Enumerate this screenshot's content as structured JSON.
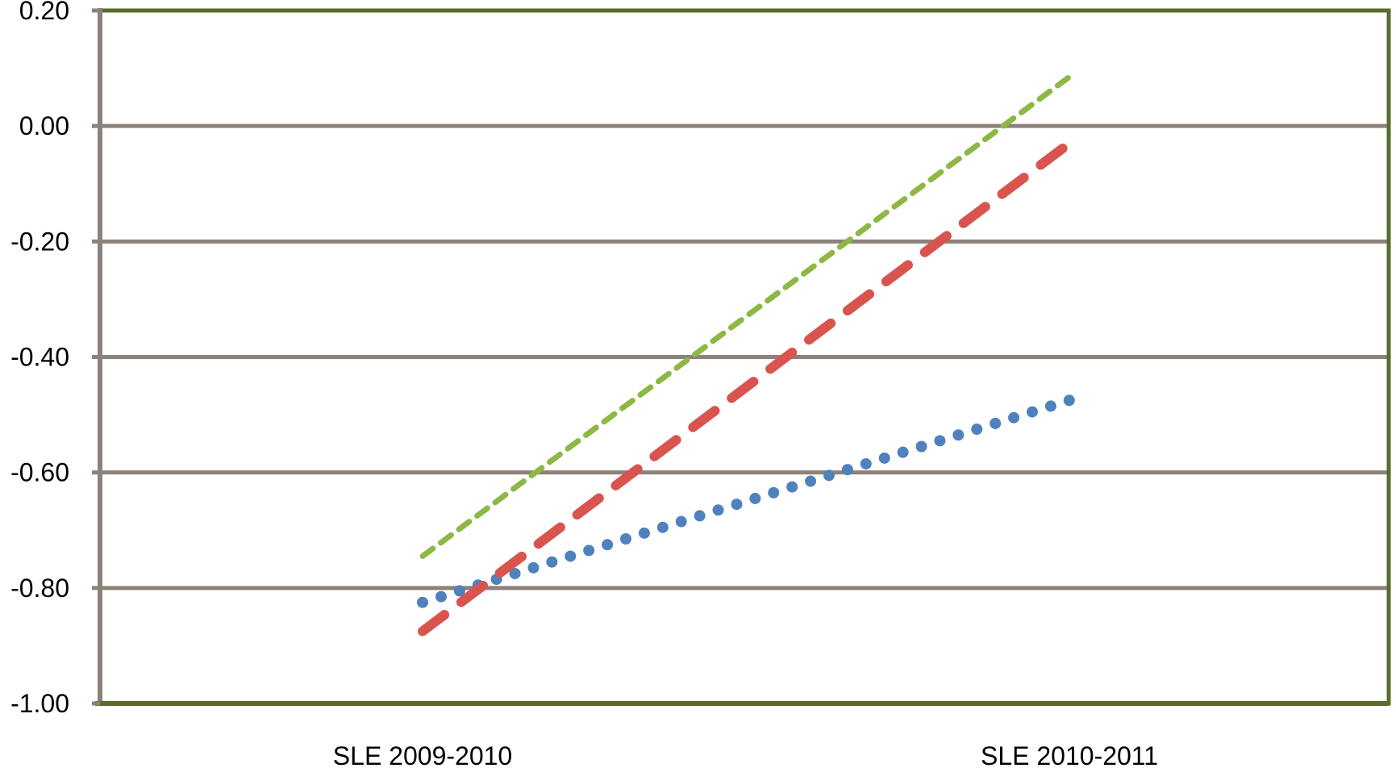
{
  "chart_data": {
    "type": "line",
    "title": "",
    "xlabel": "",
    "ylabel": "",
    "categories": [
      "SLE 2009-2010",
      "SLE 2010-2011"
    ],
    "ylim": [
      -1.0,
      0.2
    ],
    "yticks": [
      "0.20",
      "0.00",
      "-0.20",
      "-0.40",
      "-0.60",
      "-0.80",
      "-1.00"
    ],
    "ytick_values": [
      0.2,
      0.0,
      -0.2,
      -0.4,
      -0.6,
      -0.8,
      -1.0
    ],
    "grid": true,
    "legend": "none",
    "series": [
      {
        "values": [
          -0.825,
          -0.475
        ],
        "color": "#4F81BD",
        "style": "dotted"
      },
      {
        "values": [
          -0.875,
          -0.03
        ],
        "color": "#D9534F",
        "style": "dashed"
      },
      {
        "values": [
          -0.745,
          0.085
        ],
        "color": "#8DB844",
        "style": "short-dashed"
      }
    ],
    "colors": {
      "plot_border": "#5A6B2E",
      "gridline": "#8C8279",
      "axis": "#8C8279"
    }
  }
}
